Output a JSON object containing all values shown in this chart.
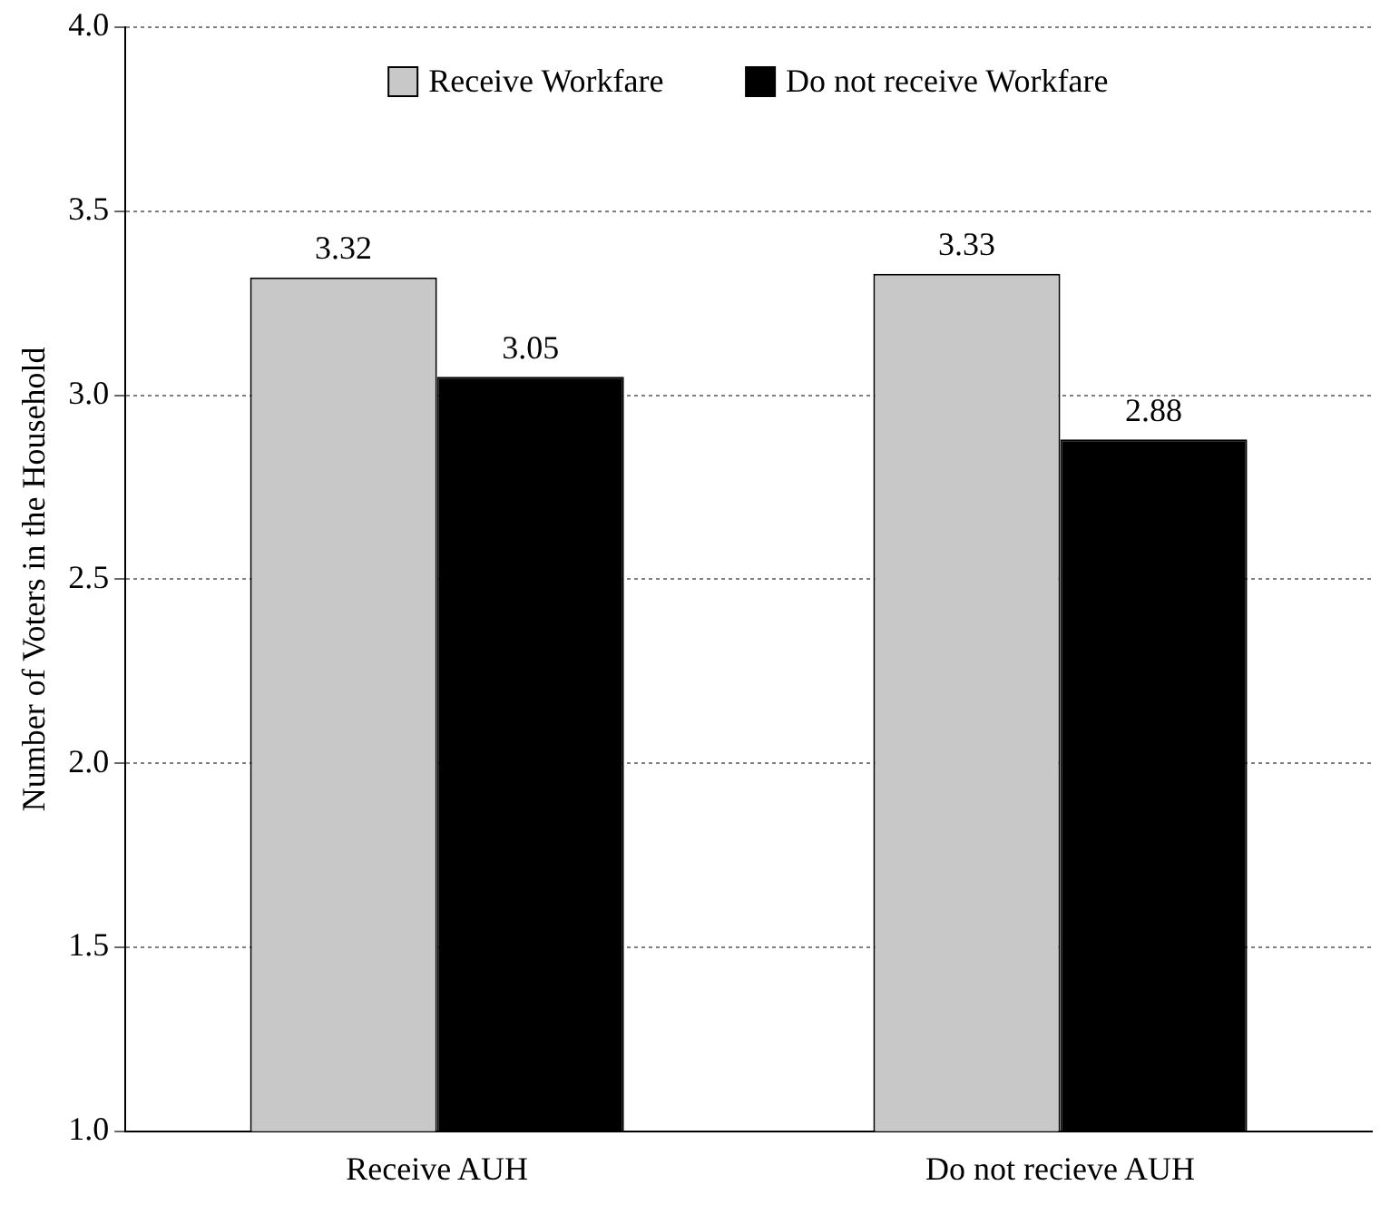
{
  "chart_data": {
    "type": "bar",
    "ylabel": "Number of Voters in the Household",
    "categories": [
      "Receive AUH",
      "Do not recieve AUH"
    ],
    "series": [
      {
        "name": "Receive Workfare",
        "color": "#c8c8c8",
        "values": [
          3.32,
          3.33
        ]
      },
      {
        "name": "Do not receive Workfare",
        "color": "#000000",
        "values": [
          3.05,
          2.88
        ]
      }
    ],
    "ylim": [
      1.0,
      4.0
    ],
    "yticks": [
      {
        "value": 1,
        "label": "1.0"
      },
      {
        "value": 1.5,
        "label": "1.5"
      },
      {
        "value": 2,
        "label": "2.0"
      },
      {
        "value": 2.5,
        "label": "2.5"
      },
      {
        "value": 3,
        "label": "3.0"
      },
      {
        "value": 3.5,
        "label": "3.5"
      },
      {
        "value": 4,
        "label": "4.0"
      }
    ],
    "grid": "y",
    "legend": "top",
    "data_labels": true
  }
}
